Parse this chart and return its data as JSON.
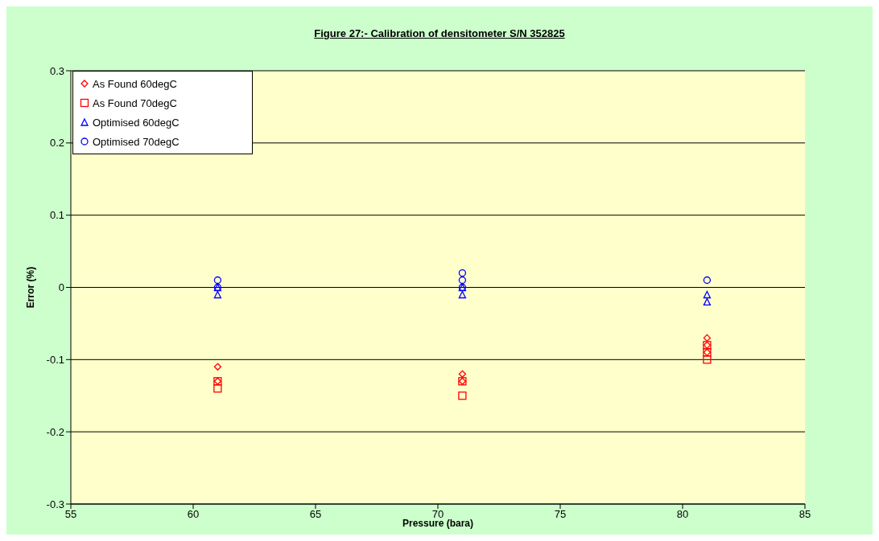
{
  "chart_data": {
    "type": "scatter",
    "title": "Figure 27:-  Calibration of densitometer S/N 352825",
    "xlabel": "Pressure (bara)",
    "ylabel": "Error (%)",
    "xlim": [
      55,
      85
    ],
    "xticks": [
      55,
      60,
      65,
      70,
      75,
      80,
      85
    ],
    "ylim": [
      -0.3,
      0.3
    ],
    "yticks": [
      -0.3,
      -0.2,
      -0.1,
      0,
      0.1,
      0.2,
      0.3
    ],
    "grid": "y",
    "legend": "top left",
    "series": [
      {
        "name": "As Found 60degC",
        "color": "#ff0000",
        "marker": "diamond",
        "x": [
          61,
          61,
          71,
          71,
          81,
          81,
          81
        ],
        "values": [
          -0.11,
          -0.13,
          -0.12,
          -0.13,
          -0.07,
          -0.08,
          -0.09
        ]
      },
      {
        "name": "As Found 70degC",
        "color": "#ff0000",
        "marker": "square",
        "x": [
          61,
          61,
          71,
          71,
          81,
          81,
          81
        ],
        "values": [
          -0.13,
          -0.14,
          -0.13,
          -0.15,
          -0.08,
          -0.09,
          -0.1
        ]
      },
      {
        "name": "Optimised 60degC",
        "color": "#0000ff",
        "marker": "triangle",
        "x": [
          61,
          61,
          71,
          71,
          81,
          81
        ],
        "values": [
          -0.01,
          0,
          -0.01,
          0,
          -0.01,
          -0.02
        ]
      },
      {
        "name": "Optimised 70degC",
        "color": "#0000ff",
        "marker": "circle",
        "x": [
          61,
          61,
          71,
          71,
          71,
          81
        ],
        "values": [
          0.01,
          0,
          0.02,
          0.01,
          0,
          0.01
        ]
      }
    ]
  }
}
